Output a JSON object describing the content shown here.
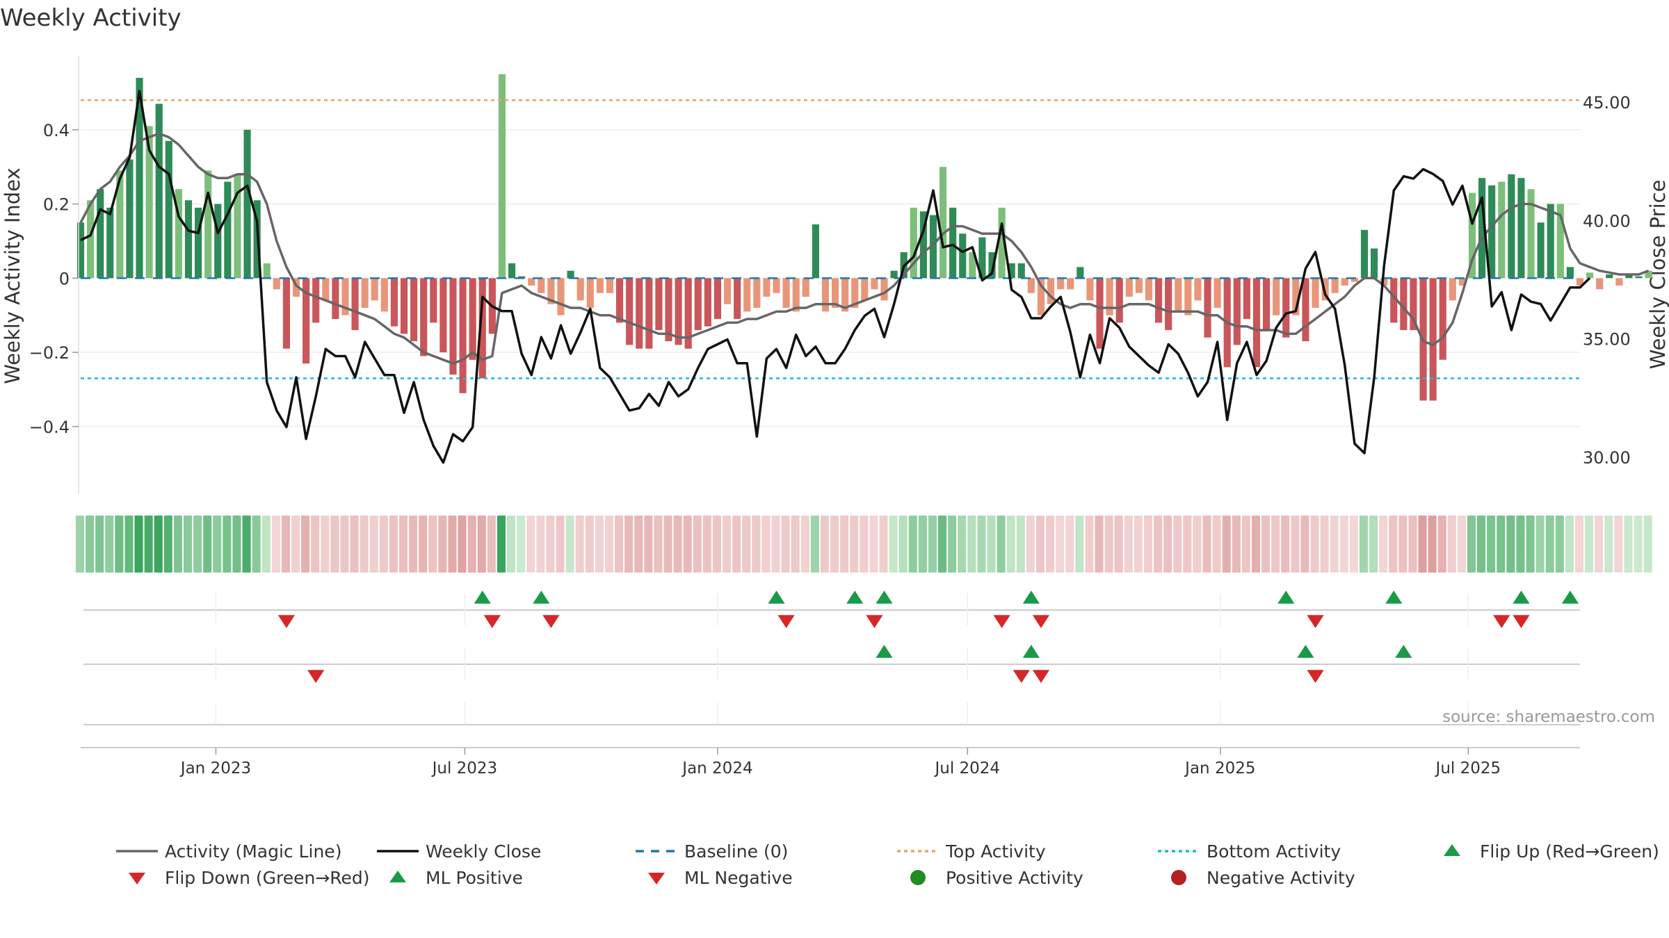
{
  "chart_data": {
    "type": "bar",
    "title": "Weekly Activity",
    "ylabel_left": "Weekly Activity Index",
    "ylabel_right": "Weekly Close Price",
    "source": "source: sharemaestro.com",
    "ylim_left": [
      -0.58,
      0.6
    ],
    "ylim_right": [
      28.5,
      47.0
    ],
    "yticks_left": [
      {
        "value": 0.4,
        "label": "0.4"
      },
      {
        "value": 0.2,
        "label": "0.2"
      },
      {
        "value": 0,
        "label": "0"
      },
      {
        "value": -0.2,
        "label": "−0.2"
      },
      {
        "value": -0.4,
        "label": "−0.4"
      }
    ],
    "yticks_right": [
      {
        "value": 45,
        "label": "45.00"
      },
      {
        "value": 40,
        "label": "40.00"
      },
      {
        "value": 35,
        "label": "35.00"
      },
      {
        "value": 30,
        "label": "30.00"
      }
    ],
    "top_activity": 0.48,
    "bottom_activity": -0.27,
    "x_start": 0,
    "x_end": 153,
    "xticks": [
      {
        "week": 13.8,
        "label": "Jan 2023"
      },
      {
        "week": 39.2,
        "label": "Jul 2023"
      },
      {
        "week": 65.0,
        "label": "Jan 2024"
      },
      {
        "week": 90.5,
        "label": "Jul 2024"
      },
      {
        "week": 116.3,
        "label": "Jan 2025"
      },
      {
        "week": 141.6,
        "label": "Jul 2025"
      }
    ],
    "activity": [
      0.15,
      0.21,
      0.24,
      0.19,
      0.29,
      0.32,
      0.54,
      0.41,
      0.47,
      0.37,
      0.24,
      0.21,
      0.19,
      0.29,
      0.2,
      0.26,
      0.28,
      0.4,
      0.21,
      0.04,
      -0.03,
      -0.19,
      -0.05,
      -0.23,
      -0.12,
      -0.06,
      -0.11,
      -0.1,
      -0.14,
      -0.08,
      -0.06,
      -0.09,
      -0.13,
      -0.15,
      -0.17,
      -0.21,
      -0.12,
      -0.2,
      -0.26,
      -0.31,
      -0.22,
      -0.27,
      -0.15,
      0.55,
      0.04,
      0.005,
      -0.02,
      -0.04,
      -0.07,
      -0.1,
      0.02,
      -0.06,
      -0.08,
      -0.04,
      -0.04,
      -0.12,
      -0.18,
      -0.19,
      -0.19,
      -0.14,
      -0.17,
      -0.18,
      -0.19,
      -0.14,
      -0.13,
      -0.11,
      -0.07,
      -0.11,
      -0.09,
      -0.08,
      -0.05,
      -0.04,
      -0.08,
      -0.09,
      -0.05,
      0.145,
      -0.09,
      -0.08,
      -0.09,
      -0.08,
      -0.06,
      -0.03,
      -0.06,
      0.02,
      0.07,
      0.19,
      0.18,
      0.17,
      0.3,
      0.19,
      0.12,
      0.07,
      0.11,
      0.07,
      0.19,
      0.04,
      0.04,
      -0.04,
      -0.1,
      -0.07,
      -0.03,
      -0.03,
      0.03,
      -0.06,
      -0.19,
      -0.1,
      -0.12,
      -0.05,
      -0.04,
      -0.06,
      -0.12,
      -0.14,
      -0.09,
      -0.1,
      -0.06,
      -0.16,
      -0.08,
      -0.24,
      -0.18,
      -0.11,
      -0.24,
      -0.14,
      -0.1,
      -0.16,
      -0.1,
      -0.17,
      -0.08,
      -0.06,
      -0.04,
      -0.02,
      -0.01,
      0.13,
      0.08,
      -0.02,
      -0.12,
      -0.14,
      -0.14,
      -0.33,
      -0.33,
      -0.22,
      -0.06,
      -0.02,
      0.23,
      0.27,
      0.25,
      0.26,
      0.28,
      0.27,
      0.24,
      0.15,
      0.2,
      0.2,
      0.03,
      -0.02,
      0.015,
      -0.03,
      0.01,
      -0.02,
      0.01,
      0.005,
      0.02
    ],
    "magic_line": [
      0.15,
      0.2,
      0.24,
      0.26,
      0.3,
      0.33,
      0.37,
      0.38,
      0.39,
      0.38,
      0.36,
      0.33,
      0.3,
      0.28,
      0.27,
      0.27,
      0.28,
      0.28,
      0.26,
      0.2,
      0.1,
      0.03,
      -0.02,
      -0.04,
      -0.05,
      -0.06,
      -0.07,
      -0.08,
      -0.09,
      -0.1,
      -0.11,
      -0.13,
      -0.15,
      -0.16,
      -0.18,
      -0.2,
      -0.21,
      -0.22,
      -0.23,
      -0.22,
      -0.2,
      -0.22,
      -0.21,
      -0.04,
      -0.03,
      -0.02,
      -0.04,
      -0.05,
      -0.06,
      -0.07,
      -0.08,
      -0.08,
      -0.09,
      -0.1,
      -0.1,
      -0.11,
      -0.12,
      -0.13,
      -0.14,
      -0.15,
      -0.15,
      -0.16,
      -0.16,
      -0.15,
      -0.14,
      -0.13,
      -0.12,
      -0.12,
      -0.11,
      -0.11,
      -0.1,
      -0.09,
      -0.09,
      -0.08,
      -0.08,
      -0.07,
      -0.07,
      -0.07,
      -0.08,
      -0.07,
      -0.06,
      -0.05,
      -0.04,
      -0.02,
      0.01,
      0.04,
      0.07,
      0.09,
      0.12,
      0.14,
      0.14,
      0.13,
      0.12,
      0.12,
      0.12,
      0.1,
      0.07,
      0.03,
      -0.02,
      -0.05,
      -0.07,
      -0.08,
      -0.07,
      -0.07,
      -0.08,
      -0.08,
      -0.08,
      -0.07,
      -0.07,
      -0.07,
      -0.08,
      -0.09,
      -0.09,
      -0.09,
      -0.09,
      -0.1,
      -0.1,
      -0.12,
      -0.13,
      -0.13,
      -0.14,
      -0.14,
      -0.14,
      -0.15,
      -0.15,
      -0.13,
      -0.11,
      -0.09,
      -0.07,
      -0.05,
      -0.02,
      0.0,
      0.0,
      -0.02,
      -0.05,
      -0.08,
      -0.11,
      -0.17,
      -0.18,
      -0.16,
      -0.12,
      -0.04,
      0.05,
      0.11,
      0.14,
      0.17,
      0.19,
      0.2,
      0.2,
      0.19,
      0.18,
      0.17,
      0.08,
      0.04,
      0.03,
      0.02,
      0.015,
      0.01,
      0.01,
      0.01,
      0.02
    ],
    "weekly_close": [
      39.2,
      39.4,
      40.5,
      40.3,
      41.8,
      42.7,
      45.5,
      43.0,
      42.3,
      42.0,
      40.2,
      39.6,
      39.5,
      41.2,
      39.5,
      40.3,
      41.2,
      41.5,
      40.0,
      33.2,
      32.0,
      31.3,
      33.4,
      30.8,
      32.6,
      34.6,
      34.3,
      34.3,
      33.4,
      34.9,
      34.2,
      33.5,
      33.5,
      31.9,
      33.2,
      31.6,
      30.5,
      29.8,
      31.0,
      30.7,
      31.3,
      36.8,
      36.4,
      36.2,
      36.2,
      34.4,
      33.5,
      35.1,
      34.2,
      35.6,
      34.4,
      35.3,
      36.3,
      33.8,
      33.4,
      32.7,
      32.0,
      32.1,
      32.7,
      32.2,
      33.2,
      32.6,
      32.9,
      33.8,
      34.6,
      34.8,
      35.0,
      34.0,
      34.0,
      30.9,
      34.2,
      34.6,
      33.8,
      35.2,
      34.3,
      34.7,
      34.0,
      34.0,
      34.6,
      35.4,
      36.0,
      36.3,
      35.1,
      36.5,
      38.1,
      38.5,
      39.6,
      41.3,
      38.9,
      39.0,
      38.7,
      38.9,
      37.5,
      37.8,
      39.9,
      37.1,
      36.8,
      35.9,
      35.9,
      36.4,
      36.8,
      35.3,
      33.4,
      35.2,
      34.0,
      35.9,
      35.5,
      34.7,
      34.3,
      33.9,
      33.6,
      34.8,
      34.4,
      33.6,
      32.6,
      33.2,
      34.9,
      31.6,
      34.0,
      34.9,
      33.5,
      34.1,
      35.5,
      36.1,
      36.2,
      38.0,
      38.7,
      36.9,
      36.3,
      33.9,
      30.6,
      30.2,
      33.4,
      38.1,
      41.3,
      41.9,
      41.8,
      42.2,
      42.0,
      41.7,
      40.7,
      41.5,
      39.9,
      41.0,
      36.4,
      37.0,
      35.4,
      36.9,
      36.6,
      36.5,
      35.8,
      36.5,
      37.2,
      37.2,
      37.6
    ],
    "flip_up_weeks": [
      41,
      47,
      71,
      79,
      82,
      97,
      123,
      134,
      147,
      152
    ],
    "flip_down_weeks": [
      21,
      42,
      48,
      72,
      81,
      94,
      98,
      126,
      145,
      147
    ],
    "ml_positive_weeks": [
      82,
      97,
      125,
      135
    ],
    "ml_negative_weeks": [
      24,
      96,
      98,
      126
    ],
    "legend": [
      "Activity (Magic Line)",
      "Weekly Close",
      "Baseline (0)",
      "Top Activity",
      "Bottom Activity",
      "Flip Up (Red→Green)",
      "Flip Down (Green→Red)",
      "ML Positive",
      "ML Negative",
      "Positive Activity",
      "Negative Activity"
    ],
    "colors": {
      "pos_dark": "#2e8b57",
      "pos_light": "#7dbf7a",
      "neg_dark": "#c9565a",
      "neg_light": "#e8967a",
      "magic_line": "#666666",
      "close": "#111111",
      "baseline": "#1f77b4",
      "top": "#f0a060",
      "bottom": "#17becf",
      "flip_up": "#1a9a48",
      "flip_down": "#d62728",
      "pos_dot": "#228b22",
      "neg_dot": "#b22222"
    }
  }
}
